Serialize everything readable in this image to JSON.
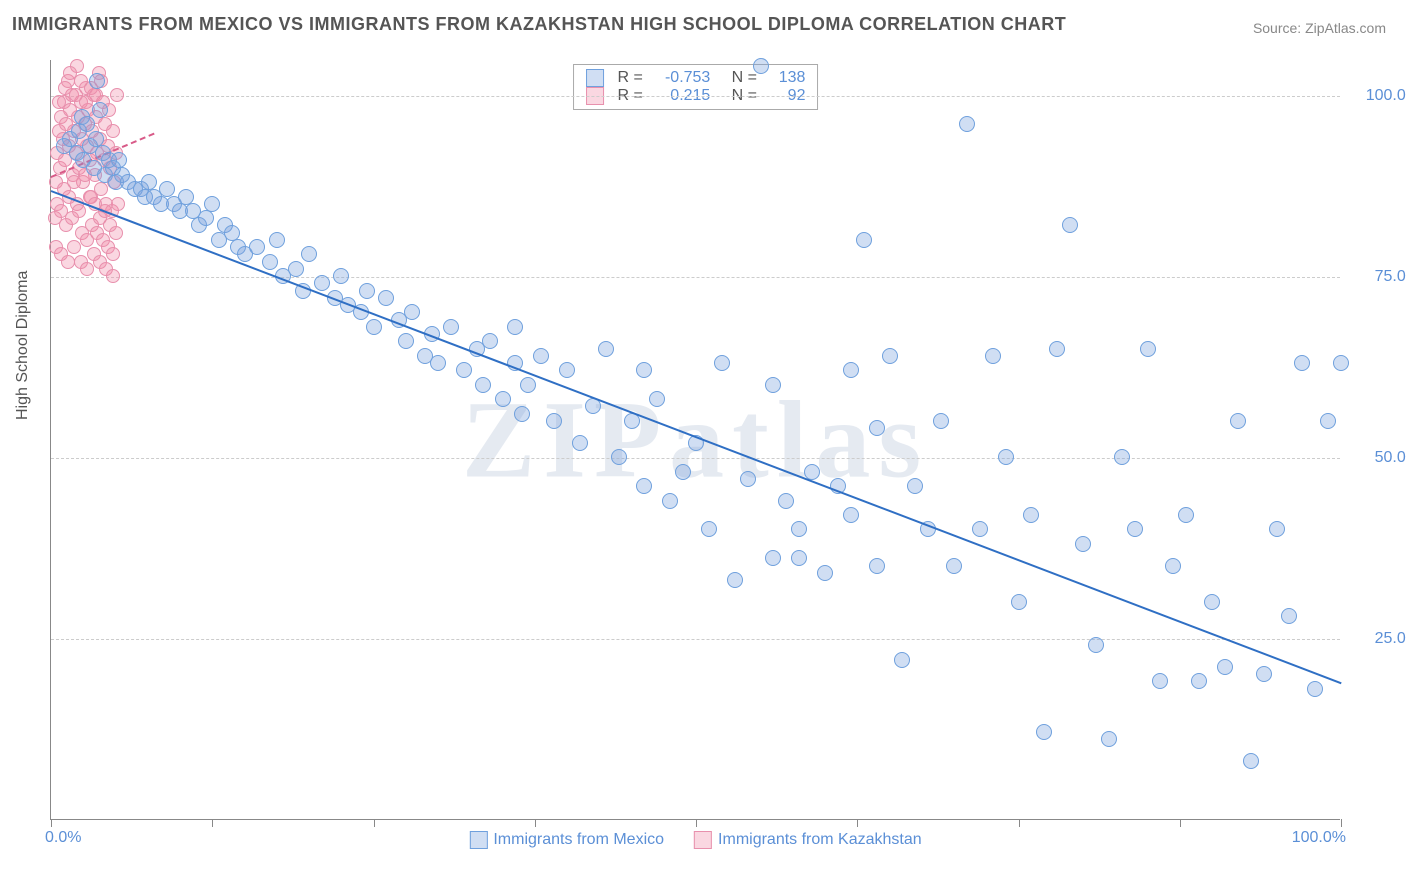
{
  "title": "IMMIGRANTS FROM MEXICO VS IMMIGRANTS FROM KAZAKHSTAN HIGH SCHOOL DIPLOMA CORRELATION CHART",
  "source_label": "Source: ",
  "source_name": "ZipAtlas.com",
  "ylabel": "High School Diploma",
  "watermark": "ZIPatlas",
  "xlim": [
    0,
    100
  ],
  "ylim": [
    0,
    105
  ],
  "x_ticks": [
    0,
    12.5,
    25,
    37.5,
    50,
    62.5,
    75,
    87.5,
    100
  ],
  "x_tick_labels": {
    "0": "0.0%",
    "100": "100.0%"
  },
  "y_gridlines": [
    25,
    50,
    75,
    100
  ],
  "y_tick_labels": {
    "25": "25.0%",
    "50": "50.0%",
    "75": "75.0%",
    "100": "100.0%"
  },
  "plot_bg": "#ffffff",
  "grid_color": "#cccccc",
  "axis_color": "#888888",
  "series": {
    "mexico": {
      "label": "Immigrants from Mexico",
      "color_fill": "rgba(120,160,220,0.35)",
      "color_stroke": "#6fa0dd",
      "marker_radius": 8,
      "R": "-0.753",
      "N": "138",
      "trend": {
        "x1": 0,
        "y1": 87,
        "x2": 100,
        "y2": 19,
        "color": "#2f6fc4",
        "width": 2.5
      },
      "points": [
        [
          1,
          93
        ],
        [
          1.5,
          94
        ],
        [
          2,
          92
        ],
        [
          2.2,
          95
        ],
        [
          2.4,
          97
        ],
        [
          2.5,
          91
        ],
        [
          2.8,
          96
        ],
        [
          3,
          93
        ],
        [
          3.3,
          90
        ],
        [
          3.5,
          94
        ],
        [
          3.6,
          102
        ],
        [
          3.8,
          98
        ],
        [
          4,
          92
        ],
        [
          4.2,
          89
        ],
        [
          4.5,
          91
        ],
        [
          4.8,
          90
        ],
        [
          5,
          88
        ],
        [
          5.3,
          91
        ],
        [
          5.5,
          89
        ],
        [
          6,
          88
        ],
        [
          6.5,
          87
        ],
        [
          7,
          87
        ],
        [
          7.3,
          86
        ],
        [
          7.6,
          88
        ],
        [
          8,
          86
        ],
        [
          8.5,
          85
        ],
        [
          9,
          87
        ],
        [
          9.5,
          85
        ],
        [
          10,
          84
        ],
        [
          10.5,
          86
        ],
        [
          11,
          84
        ],
        [
          11.5,
          82
        ],
        [
          12,
          83
        ],
        [
          12.5,
          85
        ],
        [
          13,
          80
        ],
        [
          13.5,
          82
        ],
        [
          14,
          81
        ],
        [
          14.5,
          79
        ],
        [
          15,
          78
        ],
        [
          16,
          79
        ],
        [
          17,
          77
        ],
        [
          17.5,
          80
        ],
        [
          18,
          75
        ],
        [
          19,
          76
        ],
        [
          19.5,
          73
        ],
        [
          20,
          78
        ],
        [
          21,
          74
        ],
        [
          22,
          72
        ],
        [
          22.5,
          75
        ],
        [
          23,
          71
        ],
        [
          24,
          70
        ],
        [
          24.5,
          73
        ],
        [
          25,
          68
        ],
        [
          26,
          72
        ],
        [
          27,
          69
        ],
        [
          27.5,
          66
        ],
        [
          28,
          70
        ],
        [
          29,
          64
        ],
        [
          29.5,
          67
        ],
        [
          30,
          63
        ],
        [
          31,
          68
        ],
        [
          32,
          62
        ],
        [
          33,
          65
        ],
        [
          33.5,
          60
        ],
        [
          34,
          66
        ],
        [
          35,
          58
        ],
        [
          36,
          63
        ],
        [
          36.5,
          56
        ],
        [
          37,
          60
        ],
        [
          38,
          64
        ],
        [
          39,
          55
        ],
        [
          40,
          62
        ],
        [
          41,
          52
        ],
        [
          42,
          57
        ],
        [
          43,
          65
        ],
        [
          44,
          50
        ],
        [
          45,
          55
        ],
        [
          46,
          46
        ],
        [
          47,
          58
        ],
        [
          48,
          44
        ],
        [
          49,
          48
        ],
        [
          50,
          52
        ],
        [
          51,
          40
        ],
        [
          52,
          63
        ],
        [
          53,
          33
        ],
        [
          54,
          47
        ],
        [
          55,
          104
        ],
        [
          56,
          36
        ],
        [
          57,
          44
        ],
        [
          58,
          40
        ],
        [
          59,
          48
        ],
        [
          60,
          34
        ],
        [
          61,
          46
        ],
        [
          62,
          42
        ],
        [
          63,
          80
        ],
        [
          64,
          35
        ],
        [
          65,
          64
        ],
        [
          66,
          22
        ],
        [
          67,
          46
        ],
        [
          69,
          55
        ],
        [
          71,
          96
        ],
        [
          72,
          40
        ],
        [
          73,
          64
        ],
        [
          74,
          50
        ],
        [
          75,
          30
        ],
        [
          76,
          42
        ],
        [
          77,
          12
        ],
        [
          78,
          65
        ],
        [
          79,
          82
        ],
        [
          80,
          38
        ],
        [
          81,
          24
        ],
        [
          82,
          11
        ],
        [
          83,
          50
        ],
        [
          84,
          40
        ],
        [
          85,
          65
        ],
        [
          86,
          19
        ],
        [
          87,
          35
        ],
        [
          88,
          42
        ],
        [
          89,
          19
        ],
        [
          90,
          30
        ],
        [
          91,
          21
        ],
        [
          92,
          55
        ],
        [
          93,
          8
        ],
        [
          94,
          20
        ],
        [
          95,
          40
        ],
        [
          96,
          28
        ],
        [
          97,
          63
        ],
        [
          98,
          18
        ],
        [
          99,
          55
        ],
        [
          100,
          63
        ],
        [
          62,
          62
        ],
        [
          68,
          40
        ],
        [
          70,
          35
        ],
        [
          46,
          62
        ],
        [
          36,
          68
        ],
        [
          56,
          60
        ],
        [
          58,
          36
        ],
        [
          64,
          54
        ]
      ]
    },
    "kazakhstan": {
      "label": "Immigrants from Kazakhstan",
      "color_fill": "rgba(240,140,170,0.35)",
      "color_stroke": "#e890ad",
      "marker_radius": 7,
      "R": "0.215",
      "N": "92",
      "trend": {
        "x1": 0,
        "y1": 89,
        "x2": 8,
        "y2": 95,
        "color": "#d85a88",
        "width": 2,
        "dashed": true
      },
      "points": [
        [
          0.4,
          88
        ],
        [
          0.5,
          92
        ],
        [
          0.6,
          95
        ],
        [
          0.7,
          90
        ],
        [
          0.8,
          97
        ],
        [
          0.9,
          94
        ],
        [
          1.0,
          99
        ],
        [
          1.1,
          91
        ],
        [
          1.2,
          96
        ],
        [
          1.3,
          102
        ],
        [
          1.4,
          93
        ],
        [
          1.5,
          98
        ],
        [
          1.6,
          100
        ],
        [
          1.7,
          89
        ],
        [
          1.8,
          95
        ],
        [
          1.9,
          92
        ],
        [
          2.0,
          104
        ],
        [
          2.1,
          97
        ],
        [
          2.2,
          90
        ],
        [
          2.3,
          99
        ],
        [
          2.4,
          94
        ],
        [
          2.5,
          88
        ],
        [
          2.6,
          96
        ],
        [
          2.7,
          101
        ],
        [
          2.8,
          93
        ],
        [
          2.9,
          98
        ],
        [
          3.0,
          91
        ],
        [
          3.1,
          86
        ],
        [
          3.2,
          95
        ],
        [
          3.3,
          100
        ],
        [
          3.4,
          89
        ],
        [
          3.5,
          97
        ],
        [
          3.6,
          92
        ],
        [
          3.7,
          103
        ],
        [
          3.8,
          94
        ],
        [
          3.9,
          87
        ],
        [
          4.0,
          99
        ],
        [
          4.1,
          91
        ],
        [
          4.2,
          96
        ],
        [
          4.3,
          85
        ],
        [
          4.4,
          93
        ],
        [
          4.5,
          98
        ],
        [
          4.6,
          90
        ],
        [
          4.7,
          84
        ],
        [
          4.8,
          95
        ],
        [
          4.9,
          88
        ],
        [
          5.0,
          92
        ],
        [
          5.1,
          100
        ],
        [
          0.3,
          83
        ],
        [
          0.5,
          85
        ],
        [
          0.6,
          99
        ],
        [
          0.8,
          84
        ],
        [
          1.0,
          87
        ],
        [
          1.2,
          82
        ],
        [
          1.4,
          86
        ],
        [
          1.6,
          83
        ],
        [
          1.8,
          88
        ],
        [
          2.0,
          85
        ],
        [
          2.2,
          84
        ],
        [
          2.4,
          81
        ],
        [
          2.6,
          89
        ],
        [
          2.8,
          80
        ],
        [
          3.0,
          86
        ],
        [
          3.2,
          82
        ],
        [
          3.4,
          85
        ],
        [
          3.6,
          81
        ],
        [
          3.8,
          83
        ],
        [
          4.0,
          80
        ],
        [
          4.2,
          84
        ],
        [
          4.4,
          79
        ],
        [
          4.6,
          82
        ],
        [
          4.8,
          78
        ],
        [
          5.0,
          81
        ],
        [
          5.2,
          85
        ],
        [
          1.1,
          101
        ],
        [
          1.5,
          103
        ],
        [
          1.9,
          100
        ],
        [
          2.3,
          102
        ],
        [
          2.7,
          99
        ],
        [
          3.1,
          101
        ],
        [
          3.5,
          100
        ],
        [
          3.9,
          102
        ],
        [
          0.4,
          79
        ],
        [
          0.8,
          78
        ],
        [
          1.3,
          77
        ],
        [
          1.8,
          79
        ],
        [
          2.3,
          77
        ],
        [
          2.8,
          76
        ],
        [
          3.3,
          78
        ],
        [
          3.8,
          77
        ],
        [
          4.3,
          76
        ],
        [
          4.8,
          75
        ]
      ]
    }
  }
}
